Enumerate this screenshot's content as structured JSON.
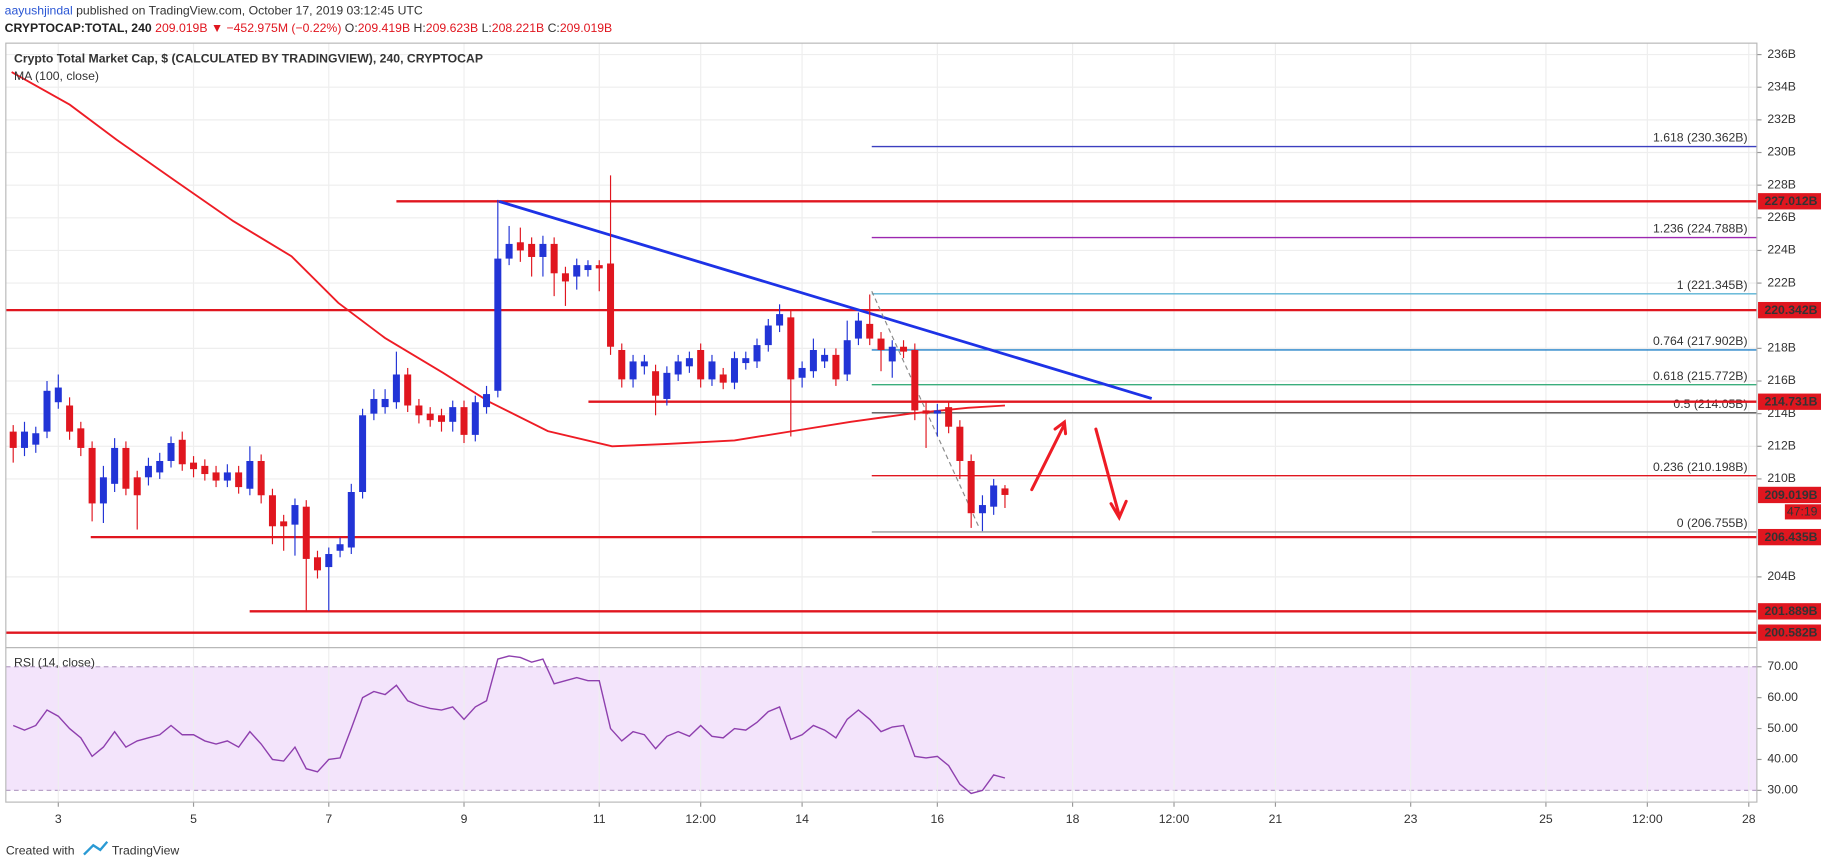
{
  "header": {
    "author": "aayushjindal",
    "published": " published on TradingView.com, October 17, 2019 03:12:45 UTC",
    "symbol": "CRYPTOCAP:TOTAL, 240",
    "price": "209.019B",
    "change": "▼ −452.975M (−0.22%)",
    "ohlc": [
      {
        "key": "O:",
        "value": "209.419B"
      },
      {
        "key": "H:",
        "value": "209.623B"
      },
      {
        "key": "L:",
        "value": "208.221B"
      },
      {
        "key": "C:",
        "value": "209.019B"
      }
    ]
  },
  "chart_data": [
    {
      "type": "candlestick",
      "title": "Crypto Total Market Cap, $ (CALCULATED BY TRADINGVIEW), 240, CRYPTOCAP",
      "up_color": "#2234d6",
      "down_color": "#e0161f",
      "x": [
        2.333,
        2.5,
        2.667,
        2.833,
        3,
        3.167,
        3.333,
        3.5,
        3.667,
        3.833,
        4,
        4.167,
        4.333,
        4.5,
        4.667,
        4.833,
        5,
        5.167,
        5.333,
        5.5,
        5.667,
        5.833,
        6,
        6.167,
        6.333,
        6.5,
        6.667,
        6.833,
        7,
        7.167,
        7.333,
        7.5,
        7.667,
        7.833,
        8,
        8.167,
        8.333,
        8.5,
        8.667,
        8.833,
        9,
        9.167,
        9.333,
        9.5,
        9.667,
        9.833,
        10,
        10.167,
        10.333,
        10.5,
        10.667,
        10.833,
        11,
        11.167,
        11.333,
        11.5,
        11.667,
        11.833,
        12,
        12.167,
        12.333,
        12.5,
        12.667,
        12.833,
        13,
        13.167,
        13.333,
        13.5,
        13.667,
        13.833,
        14,
        14.167,
        14.333,
        14.5,
        14.667,
        14.833,
        15,
        15.167,
        15.333,
        15.5,
        15.667,
        15.833,
        16,
        16.167,
        16.333,
        16.5,
        16.667,
        16.833,
        17
      ],
      "open": [
        212.9,
        211.9,
        212.1,
        212.9,
        214.7,
        214.5,
        213.1,
        211.9,
        208.5,
        209.7,
        211.9,
        210.1,
        210.1,
        210.4,
        211.1,
        212.4,
        211.0,
        210.8,
        210.4,
        209.9,
        210.4,
        209.4,
        211.1,
        209.0,
        207.4,
        207.2,
        208.3,
        205.2,
        204.6,
        205.6,
        205.8,
        209.2,
        214.0,
        214.4,
        214.7,
        216.4,
        214.5,
        214.0,
        213.9,
        213.5,
        214.4,
        212.7,
        214.4,
        215.4,
        223.5,
        224.5,
        224.4,
        223.6,
        224.4,
        222.6,
        222.4,
        222.8,
        223.1,
        223.2,
        217.9,
        216.1,
        216.9,
        216.6,
        214.9,
        216.4,
        216.9,
        217.9,
        216.1,
        216.4,
        215.9,
        217.1,
        217.2,
        218.2,
        219.4,
        219.9,
        216.2,
        216.6,
        217.2,
        217.6,
        216.4,
        218.6,
        219.5,
        218.6,
        217.2,
        218.1,
        217.9,
        214.2,
        214.0,
        214.4,
        213.2,
        211.1,
        207.9,
        208.3,
        209.419
      ],
      "high": [
        213.3,
        213.5,
        213.2,
        216.0,
        216.4,
        215.0,
        213.5,
        212.3,
        210.8,
        212.5,
        212.3,
        210.5,
        211.3,
        211.6,
        212.6,
        212.9,
        211.4,
        211.2,
        210.8,
        210.9,
        210.8,
        212.0,
        211.5,
        209.4,
        207.8,
        208.8,
        208.7,
        205.6,
        205.8,
        206.4,
        209.7,
        214.3,
        215.5,
        215.5,
        217.8,
        216.8,
        214.9,
        214.4,
        214.3,
        214.8,
        214.8,
        215.1,
        215.7,
        227.1,
        225.5,
        225.4,
        224.8,
        224.9,
        224.8,
        223.0,
        223.5,
        223.4,
        223.4,
        228.6,
        218.3,
        217.6,
        217.6,
        217.0,
        216.9,
        217.6,
        217.8,
        218.3,
        217.6,
        216.8,
        217.8,
        217.8,
        218.6,
        219.8,
        220.7,
        220.3,
        217.2,
        218.6,
        218.0,
        218.0,
        219.7,
        220.2,
        221.3,
        219.0,
        218.5,
        218.5,
        218.3,
        214.8,
        214.6,
        214.8,
        213.6,
        211.5,
        209.0,
        210.0,
        209.623
      ],
      "low": [
        211.0,
        211.4,
        211.6,
        212.5,
        214.3,
        212.4,
        211.4,
        207.4,
        207.3,
        209.2,
        209.0,
        206.9,
        209.6,
        210.0,
        210.7,
        210.5,
        210.1,
        209.9,
        209.5,
        209.5,
        209.1,
        209.0,
        208.5,
        206.0,
        205.6,
        205.3,
        201.9,
        203.9,
        201.9,
        205.2,
        205.4,
        208.8,
        213.6,
        214.0,
        214.3,
        214.1,
        213.4,
        213.2,
        212.9,
        212.9,
        212.2,
        212.3,
        214.0,
        215.0,
        223.1,
        223.3,
        222.4,
        222.4,
        221.2,
        220.6,
        221.6,
        222.4,
        221.5,
        217.6,
        215.6,
        215.6,
        216.4,
        213.9,
        214.5,
        216.0,
        216.5,
        215.6,
        215.7,
        215.5,
        215.5,
        216.7,
        216.8,
        217.8,
        219.0,
        212.6,
        215.6,
        216.2,
        216.8,
        215.7,
        216.0,
        218.2,
        218.2,
        216.6,
        216.2,
        217.4,
        213.6,
        211.9,
        212.6,
        212.8,
        210.0,
        207.0,
        206.8,
        207.8,
        208.221
      ],
      "close": [
        211.9,
        212.9,
        212.8,
        215.4,
        215.6,
        212.9,
        211.9,
        208.5,
        210.1,
        211.9,
        209.4,
        209.0,
        210.8,
        211.1,
        212.2,
        210.9,
        210.6,
        210.3,
        209.9,
        210.4,
        209.5,
        211.1,
        209.0,
        207.1,
        207.1,
        208.4,
        205.1,
        204.4,
        205.4,
        206.0,
        209.2,
        213.9,
        214.9,
        214.9,
        216.4,
        214.5,
        213.9,
        213.6,
        213.5,
        214.4,
        212.7,
        214.7,
        215.2,
        223.5,
        224.4,
        224.0,
        223.6,
        224.4,
        222.6,
        222.1,
        223.1,
        223.1,
        222.9,
        218.1,
        216.1,
        217.2,
        217.2,
        215.1,
        216.5,
        217.2,
        217.4,
        216.1,
        217.2,
        215.9,
        217.4,
        217.4,
        218.2,
        219.4,
        220.1,
        216.1,
        216.8,
        217.9,
        217.6,
        216.1,
        218.5,
        219.7,
        218.6,
        217.9,
        218.1,
        217.8,
        214.2,
        214.0,
        214.2,
        213.2,
        211.1,
        207.9,
        208.4,
        209.6,
        209.019
      ],
      "xlim": [
        2.224,
        28.12
      ],
      "xticks": [
        3,
        5,
        7,
        9,
        11,
        {
          "value": 12.5,
          "label": "12:00"
        },
        14,
        16,
        18,
        {
          "value": 19.5,
          "label": "12:00"
        },
        21,
        23,
        25,
        {
          "value": 26.5,
          "label": "12:00"
        },
        28
      ],
      "ylim": [
        199.7,
        236.7
      ],
      "yticks": [
        {
          "value": 236,
          "label": "236B"
        },
        {
          "value": 234,
          "label": "234B"
        },
        {
          "value": 232,
          "label": "232B"
        },
        {
          "value": 230,
          "label": "230B"
        },
        {
          "value": 228,
          "label": "228B"
        },
        {
          "value": 226,
          "label": "226B"
        },
        {
          "value": 224,
          "label": "224B"
        },
        {
          "value": 222,
          "label": "222B"
        },
        {
          "value": 218,
          "label": "218B"
        },
        {
          "value": 216,
          "label": "216B"
        },
        {
          "value": 214,
          "label": "214B"
        },
        {
          "value": 212,
          "label": "212B"
        },
        {
          "value": 210,
          "label": "210B"
        },
        {
          "value": 204,
          "label": "204B"
        }
      ],
      "grid": true,
      "overlays": [
        {
          "name": "MA (100, close)",
          "color": "#ee1c25",
          "width": 1.6,
          "x": [
            2.31,
            3.17,
            3.86,
            4.72,
            5.59,
            6.45,
            7.14,
            7.83,
            8.69,
            9.38,
            10.24,
            11.19,
            11.97,
            13.0,
            13.86,
            14.72,
            15.59,
            16.45,
            17.0
          ],
          "values": [
            234.93,
            232.93,
            230.79,
            228.29,
            225.79,
            223.64,
            220.79,
            218.64,
            216.5,
            214.71,
            212.93,
            212.0,
            212.14,
            212.36,
            212.93,
            213.5,
            214.0,
            214.36,
            214.5
          ]
        },
        {
          "color": "#1d32e6",
          "width": 2.4,
          "x": [
            9.52,
            19.17
          ],
          "values": [
            227.0,
            214.93
          ]
        },
        {
          "color": "#8a8a8a",
          "width": 1,
          "dash": true,
          "x": [
            15.03,
            16.62
          ],
          "values": [
            221.5,
            207.0
          ]
        }
      ],
      "levels": [
        {
          "value": 227.012,
          "label": "227.012B",
          "x_start": 8.0
        },
        {
          "value": 220.342,
          "label": "220.342B"
        },
        {
          "value": 214.731,
          "label": "214.731B",
          "x_start": 10.84
        },
        {
          "value": 206.435,
          "label": "206.435B",
          "x_start": 3.48
        },
        {
          "value": 201.889,
          "label": "201.889B",
          "x_start": 5.83
        },
        {
          "value": 200.582,
          "label": "200.582B"
        }
      ],
      "level_color": "#e0161f",
      "fib_x_start": 15.03,
      "fib_levels": [
        {
          "value": 230.362,
          "label": "1.618 (230.362B)",
          "color": "#3b3fbf"
        },
        {
          "value": 224.788,
          "label": "1.236 (224.788B)",
          "color": "#9c27b0"
        },
        {
          "value": 221.345,
          "label": "1 (221.345B)",
          "color": "#5ab3d4"
        },
        {
          "value": 217.902,
          "label": "0.764 (217.902B)",
          "color": "#2180c8"
        },
        {
          "value": 215.772,
          "label": "0.618 (215.772B)",
          "color": "#3aae7c"
        },
        {
          "value": 214.05,
          "label": "0.5 (214.05B)",
          "color": "#555555"
        },
        {
          "value": 210.198,
          "label": "0.236 (210.198B)",
          "color": "#e0161f"
        },
        {
          "value": 206.755,
          "label": "0 (206.755B)",
          "color": "#999999"
        }
      ],
      "last_price": {
        "value": 209.019,
        "label": "209.019B",
        "countdown": "47:19",
        "color": "#e0161f"
      }
    },
    {
      "type": "line",
      "title": "RSI (14, close)",
      "color": "#8e3fae",
      "values": [
        51,
        49.5,
        51,
        56,
        54,
        50,
        47,
        41,
        44,
        49,
        44,
        46,
        47,
        48,
        51,
        48,
        48,
        46,
        45,
        46,
        44,
        49,
        45,
        40,
        39.5,
        44,
        37,
        36,
        40,
        40.5,
        50,
        60,
        62,
        61,
        64,
        59,
        57.5,
        56.5,
        56,
        57,
        53,
        57,
        59,
        72.5,
        73.5,
        73,
        71.5,
        72.5,
        64.5,
        65.5,
        66.5,
        65.5,
        65.5,
        50,
        46,
        49,
        48,
        43.5,
        47.5,
        49,
        47.5,
        51,
        47.5,
        47,
        50,
        49.5,
        52,
        55.5,
        57,
        46.5,
        48,
        51,
        49.5,
        47,
        53,
        56,
        53,
        49,
        50.5,
        51,
        41,
        40.5,
        41,
        38,
        32,
        29,
        30,
        35,
        34
      ],
      "ylim": [
        26.2,
        76.0
      ],
      "yticks": [
        {
          "value": 70,
          "label": "70.00"
        },
        {
          "value": 60,
          "label": "60.00"
        },
        {
          "value": 50,
          "label": "50.00"
        },
        {
          "value": 40,
          "label": "40.00"
        },
        {
          "value": 30,
          "label": "30.00"
        }
      ],
      "band": [
        30,
        70
      ],
      "band_color": "#f3e4fb"
    }
  ],
  "footer": {
    "created": "Created with",
    "brand": "TradingView"
  }
}
